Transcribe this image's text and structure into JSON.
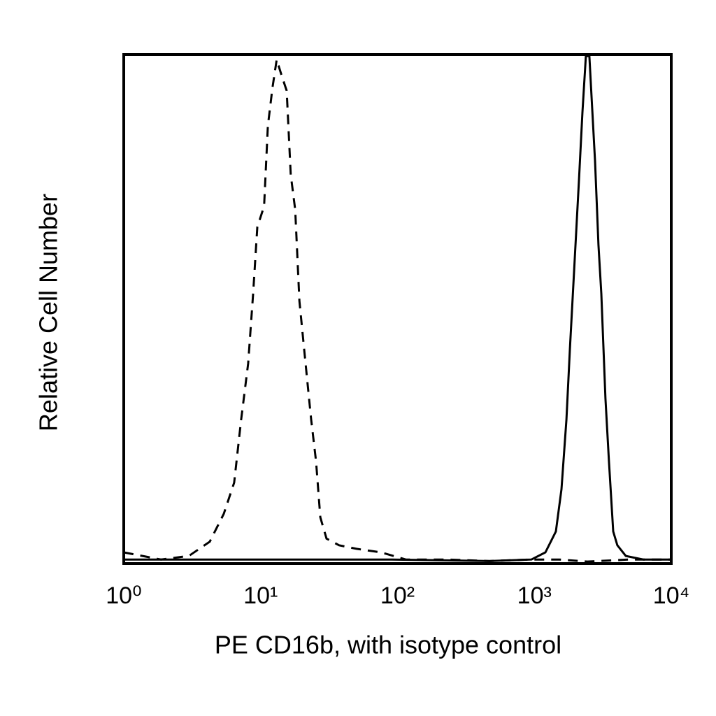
{
  "chart_data": {
    "type": "line",
    "x_label": "PE CD16b, with isotype control",
    "y_label": "Relative Cell Number",
    "xscale": "log",
    "xlim": [
      1,
      10000
    ],
    "xticks": [
      {
        "value": 1,
        "label": "10⁰"
      },
      {
        "value": 10,
        "label": "10¹"
      },
      {
        "value": 100,
        "label": "10²"
      },
      {
        "value": 1000,
        "label": "10³"
      },
      {
        "value": 10000,
        "label": "10⁴"
      }
    ],
    "ylim": [
      0,
      100
    ],
    "series": [
      {
        "color": "#000000",
        "style": "dashed",
        "x": [
          1,
          1.87,
          2.99,
          4.25,
          5.38,
          6.41,
          7.21,
          8.11,
          8.81,
          9.46,
          10.6,
          11.3,
          12.2,
          13.1,
          14.3,
          15.5,
          16.6,
          17.9,
          19.2,
          21.3,
          23.4,
          25.4,
          27.3,
          30.3,
          37.4,
          50.2,
          75.9,
          115,
          232,
          470,
          951,
          1524,
          2438,
          4943,
          10000
        ],
        "values": [
          2.2,
          0.8,
          1.5,
          4.3,
          9.8,
          15.9,
          28.3,
          39.3,
          53,
          66.1,
          70.2,
          86,
          93.5,
          99,
          95.7,
          92.9,
          76.4,
          69.5,
          51.6,
          39.3,
          28.3,
          20.1,
          9.1,
          4.9,
          3.6,
          2.9,
          2.2,
          0.8,
          0.8,
          0.5,
          0.8,
          0.8,
          0.4,
          0.8,
          0.8
        ]
      },
      {
        "color": "#000000",
        "style": "solid",
        "x": [
          1,
          90.5,
          470,
          951,
          1203,
          1436,
          1578,
          1714,
          1816,
          1972,
          2115,
          2244,
          2379,
          2523,
          2612,
          2773,
          2938,
          3083,
          3304,
          3505,
          3767,
          4036,
          4656,
          6252,
          10000
        ],
        "values": [
          0.8,
          0.8,
          0.5,
          0.8,
          2.2,
          6.3,
          14.6,
          28.3,
          42,
          59.9,
          75,
          88.7,
          99.7,
          99.7,
          92,
          79.1,
          62.6,
          53,
          32.4,
          20.1,
          6.3,
          3.6,
          1.5,
          0.8,
          0.8
        ]
      }
    ]
  }
}
